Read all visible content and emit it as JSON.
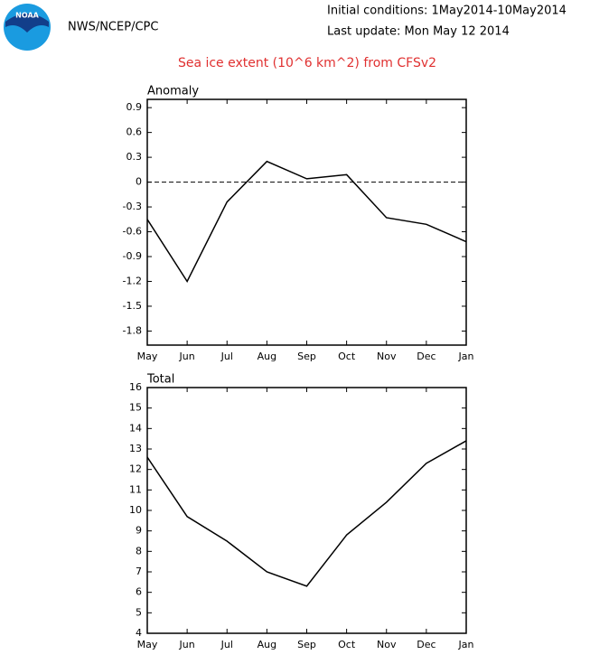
{
  "logo_text": "NOAA",
  "header": {
    "agency": "NWS/NCEP/CPC",
    "initial_conditions": "Initial conditions: 1May2014-10May2014",
    "last_update": "Last update: Mon May 12 2014"
  },
  "title": "Sea ice extent (10^6 km^2) from CFSv2",
  "chart_data": [
    {
      "type": "line",
      "title": "Anomaly",
      "categories": [
        "May",
        "Jun",
        "Jul",
        "Aug",
        "Sep",
        "Oct",
        "Nov",
        "Dec",
        "Jan"
      ],
      "series": [
        {
          "color": "#000000",
          "values": [
            -0.45,
            -1.2,
            -0.24,
            0.25,
            0.04,
            0.09,
            -0.43,
            -0.51,
            -0.72
          ]
        }
      ],
      "ylim": [
        -1.97,
        1.0
      ],
      "yticks": [
        -1.8,
        -1.5,
        -1.2,
        -0.9,
        -0.6,
        -0.3,
        0,
        0.3,
        0.6,
        0.9
      ],
      "zero_line": true
    },
    {
      "type": "line",
      "title": "Total",
      "categories": [
        "May",
        "Jun",
        "Jul",
        "Aug",
        "Sep",
        "Oct",
        "Nov",
        "Dec",
        "Jan"
      ],
      "series": [
        {
          "color": "#000000",
          "values": [
            12.6,
            9.7,
            8.5,
            7.0,
            6.3,
            8.8,
            10.4,
            12.3,
            13.4
          ]
        }
      ],
      "ylim": [
        4,
        16
      ],
      "yticks": [
        4,
        5,
        6,
        7,
        8,
        9,
        10,
        11,
        12,
        13,
        14,
        15,
        16
      ],
      "zero_line": false
    }
  ]
}
